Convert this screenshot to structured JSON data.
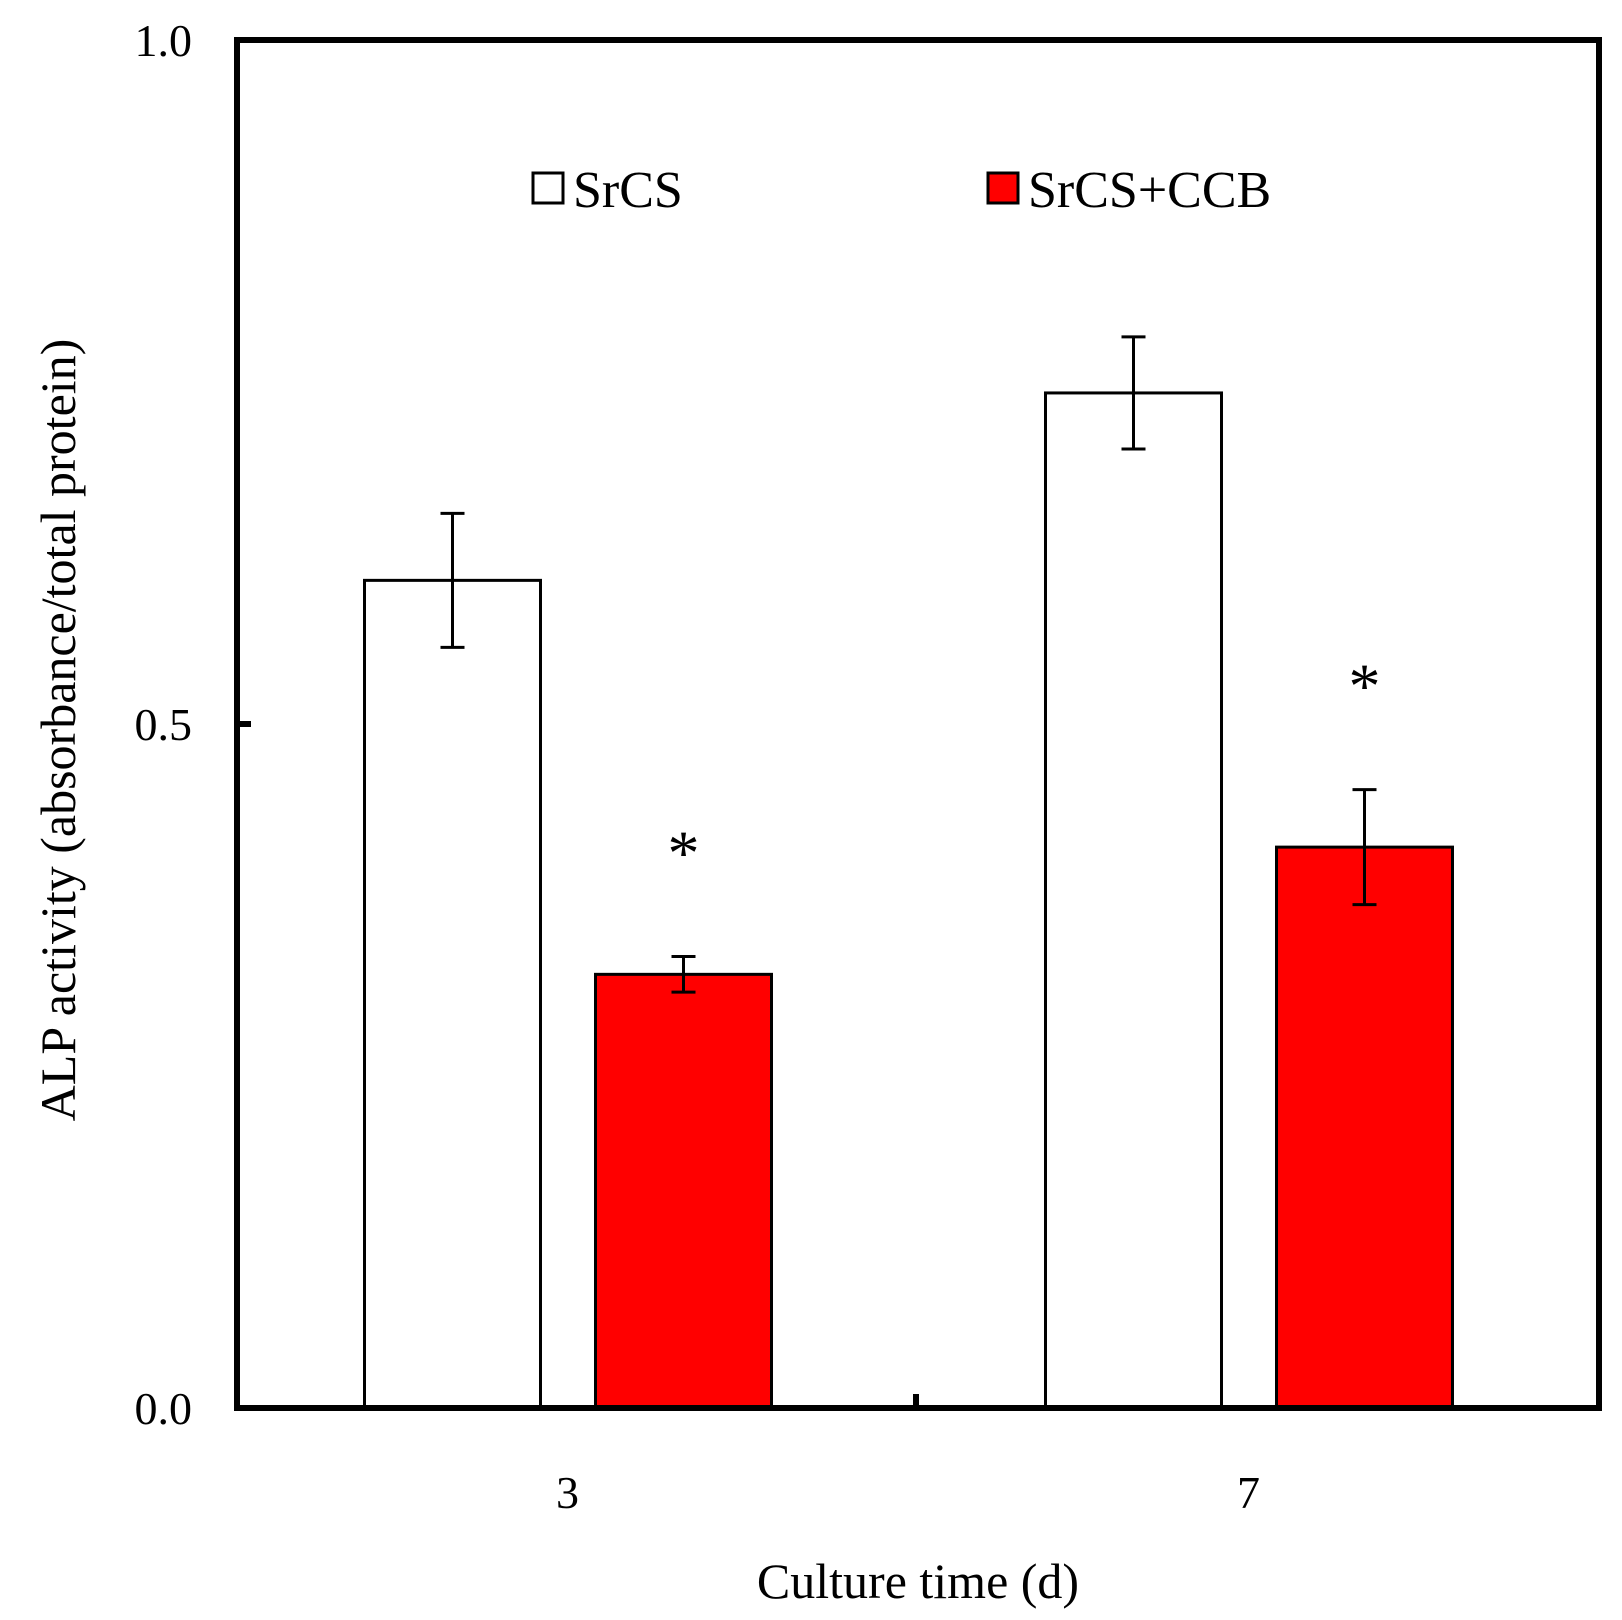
{
  "chart_data": {
    "type": "bar",
    "title": "",
    "xlabel": "Culture time (d)",
    "ylabel": "ALP activity (absorbance/total protein)",
    "categories": [
      "3",
      "7"
    ],
    "ylim": [
      0.0,
      1.0
    ],
    "yticks": [
      0.0,
      0.5,
      1.0
    ],
    "ytick_labels": [
      "0.0",
      "0.5",
      "1.0"
    ],
    "grid": false,
    "legend_position": "top",
    "series": [
      {
        "name": "SrCS",
        "color": "#ffffff",
        "values": [
          0.605,
          0.742
        ],
        "errors": [
          0.049,
          0.041
        ],
        "annotations": [
          "",
          ""
        ]
      },
      {
        "name": "SrCS+CCB",
        "color": "#ff0000",
        "values": [
          0.317,
          0.41
        ],
        "errors": [
          0.013,
          0.042
        ],
        "annotations": [
          "*",
          "*"
        ]
      }
    ]
  }
}
